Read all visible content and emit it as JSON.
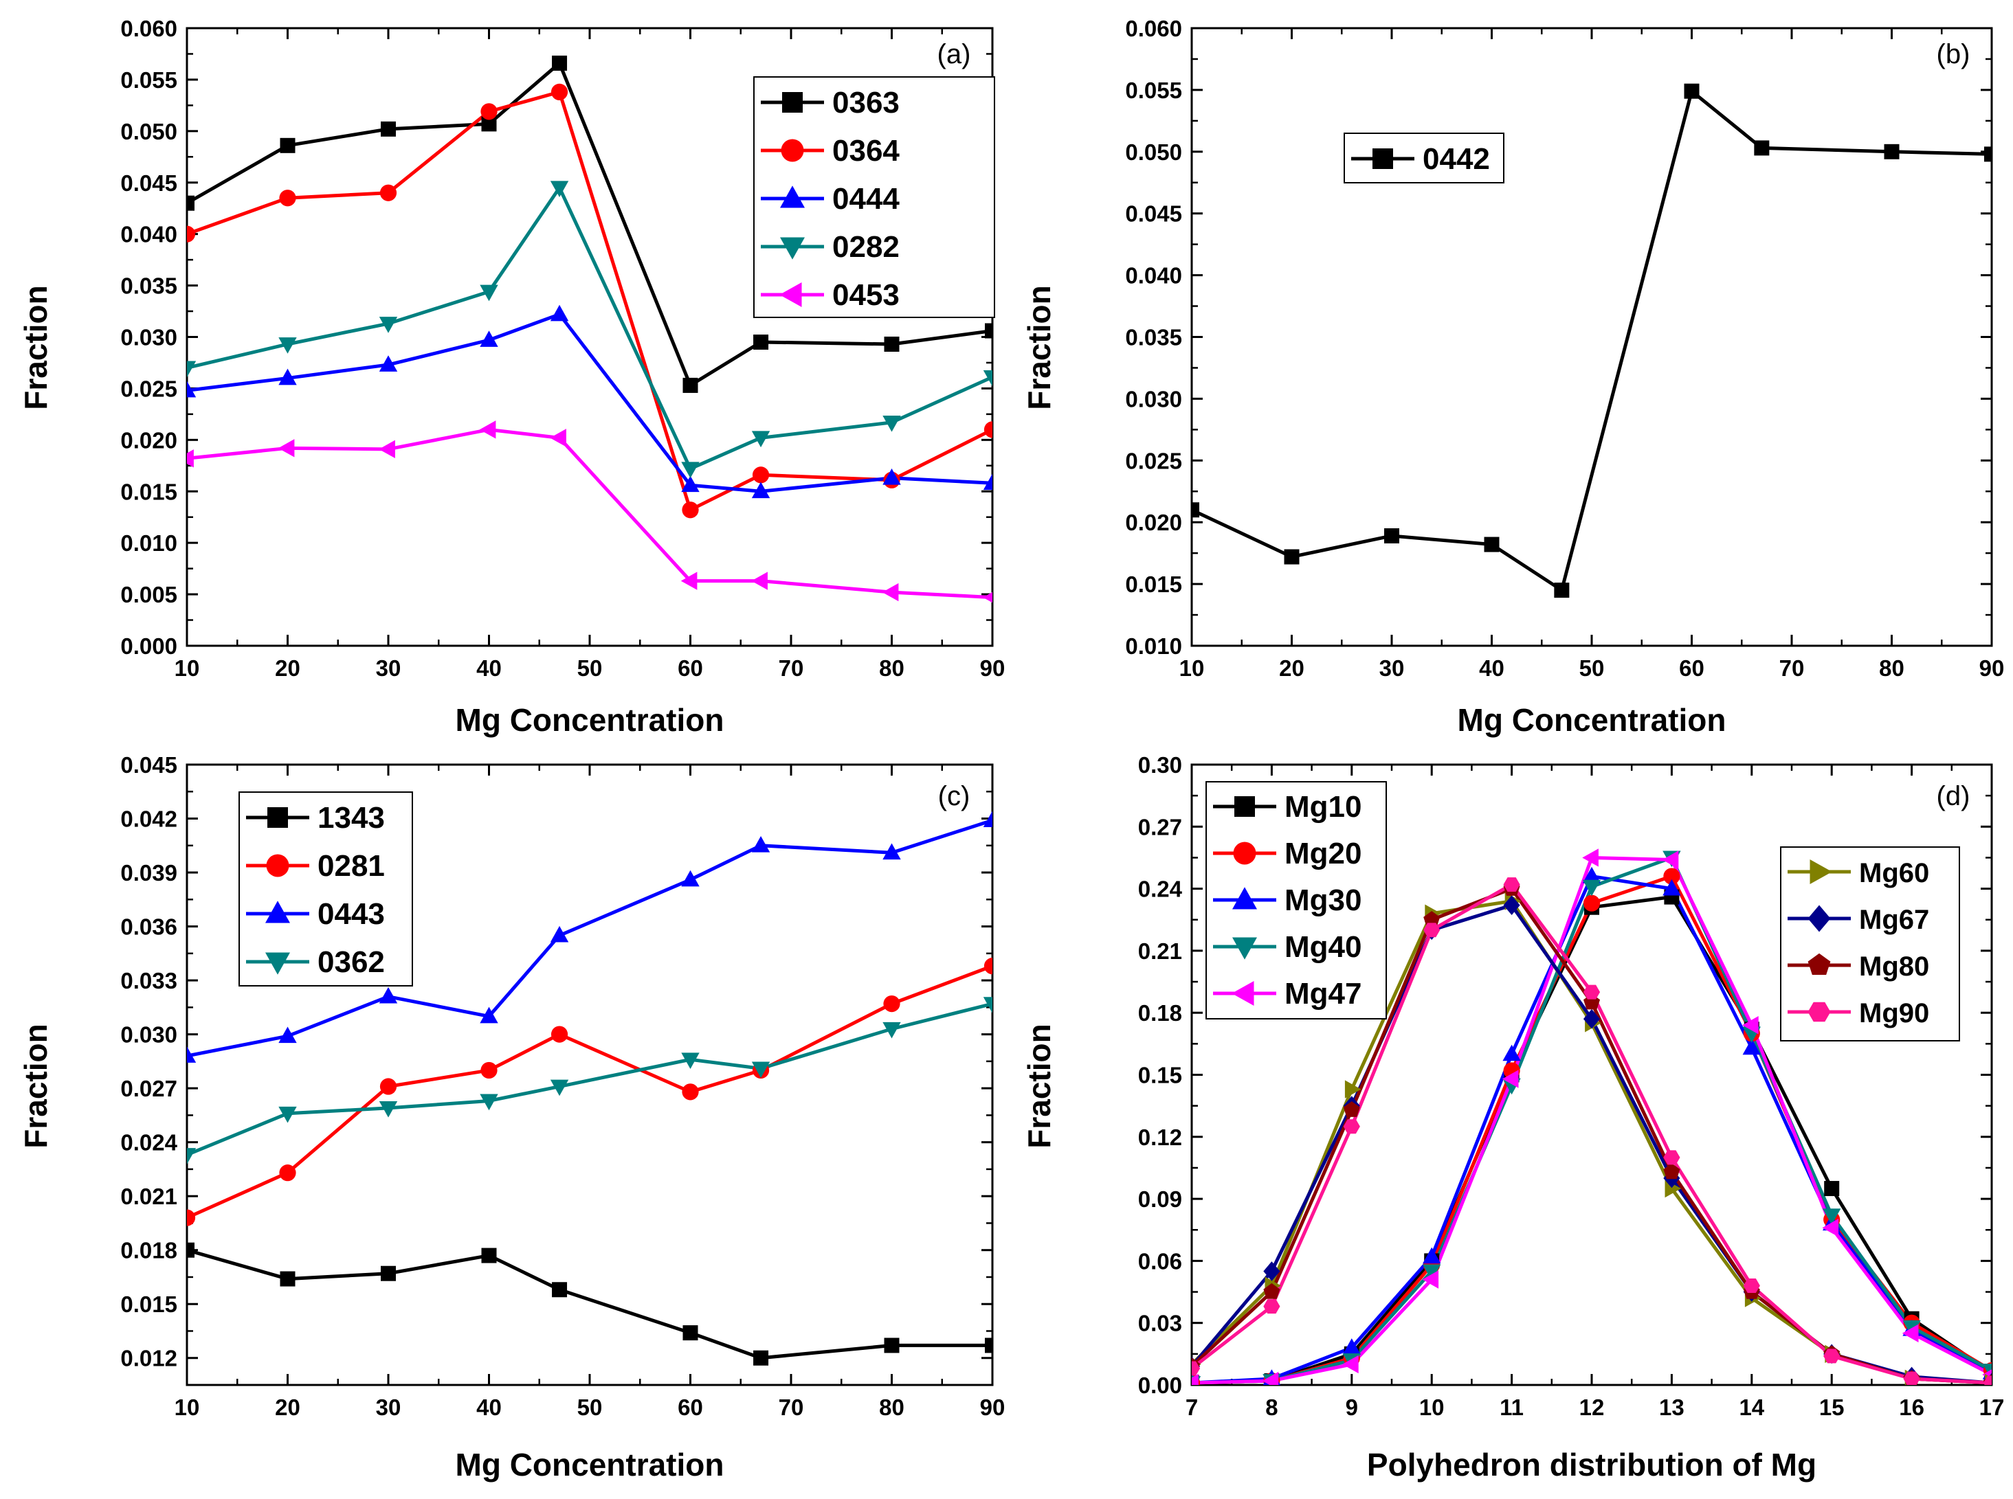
{
  "chart_data": [
    {
      "type": "line",
      "panel_label": "(a)",
      "xlabel": "Mg Concentration",
      "ylabel": "Fraction",
      "xlim": [
        10,
        90
      ],
      "ylim": [
        0.0,
        0.06
      ],
      "xticks": [
        10,
        20,
        30,
        40,
        50,
        60,
        70,
        80,
        90
      ],
      "yticks": [
        "0.000",
        "0.005",
        "0.010",
        "0.015",
        "0.020",
        "0.025",
        "0.030",
        "0.035",
        "0.040",
        "0.045",
        "0.050",
        "0.055",
        "0.060"
      ],
      "legend_position": "top-right",
      "x": [
        10,
        20,
        30,
        40,
        47,
        60,
        67,
        80,
        90
      ],
      "series": [
        {
          "name": "0363",
          "color": "#000000",
          "marker": "square",
          "values": [
            0.043,
            0.0486,
            0.0502,
            0.0507,
            0.0566,
            0.0253,
            0.0295,
            0.0293,
            0.0306
          ]
        },
        {
          "name": "0364",
          "color": "#ff0000",
          "marker": "circle",
          "values": [
            0.04,
            0.0435,
            0.044,
            0.0519,
            0.0538,
            0.0132,
            0.0166,
            0.0161,
            0.021
          ]
        },
        {
          "name": "0444",
          "color": "#0000ff",
          "marker": "triangle-up",
          "values": [
            0.0248,
            0.026,
            0.0273,
            0.0297,
            0.0322,
            0.0156,
            0.015,
            0.0163,
            0.0158
          ]
        },
        {
          "name": "0282",
          "color": "#008080",
          "marker": "triangle-down",
          "values": [
            0.027,
            0.0293,
            0.0313,
            0.0344,
            0.0445,
            0.0172,
            0.0202,
            0.0217,
            0.0261
          ]
        },
        {
          "name": "0453",
          "color": "#ff00ff",
          "marker": "triangle-left",
          "values": [
            0.0182,
            0.0192,
            0.0191,
            0.021,
            0.0202,
            0.0063,
            0.0063,
            0.0052,
            0.0047
          ]
        }
      ]
    },
    {
      "type": "line",
      "panel_label": "(b)",
      "xlabel": "Mg Concentration",
      "ylabel": "Fraction",
      "xlim": [
        10,
        90
      ],
      "ylim": [
        0.01,
        0.06
      ],
      "xticks": [
        10,
        20,
        30,
        40,
        50,
        60,
        70,
        80,
        90
      ],
      "yticks": [
        "0.010",
        "0.015",
        "0.020",
        "0.025",
        "0.030",
        "0.035",
        "0.040",
        "0.045",
        "0.050",
        "0.055",
        "0.060"
      ],
      "legend_position": "upper-left",
      "x": [
        10,
        20,
        30,
        40,
        47,
        60,
        67,
        80,
        90
      ],
      "series": [
        {
          "name": "0442",
          "color": "#000000",
          "marker": "square",
          "values": [
            0.021,
            0.0172,
            0.0189,
            0.0182,
            0.0145,
            0.0549,
            0.0503,
            0.05,
            0.0498
          ]
        }
      ]
    },
    {
      "type": "line",
      "panel_label": "(c)",
      "xlabel": "Mg Concentration",
      "ylabel": "Fraction",
      "xlim": [
        10,
        90
      ],
      "ylim": [
        0.0105,
        0.045
      ],
      "xticks": [
        10,
        20,
        30,
        40,
        50,
        60,
        70,
        80,
        90
      ],
      "yticks": [
        "0.012",
        "0.015",
        "0.018",
        "0.021",
        "0.024",
        "0.027",
        "0.030",
        "0.033",
        "0.036",
        "0.039",
        "0.042",
        "0.045"
      ],
      "legend_position": "top-left",
      "x": [
        10,
        20,
        30,
        40,
        47,
        60,
        67,
        80,
        90
      ],
      "series": [
        {
          "name": "1343",
          "color": "#000000",
          "marker": "square",
          "values": [
            0.018,
            0.0164,
            0.0167,
            0.0177,
            0.0158,
            0.0134,
            0.012,
            0.0127,
            0.0127
          ]
        },
        {
          "name": "0281",
          "color": "#ff0000",
          "marker": "circle",
          "values": [
            0.0198,
            0.0223,
            0.0271,
            0.028,
            0.03,
            0.0268,
            0.028,
            0.0317,
            0.0338
          ]
        },
        {
          "name": "0443",
          "color": "#0000ff",
          "marker": "triangle-up",
          "values": [
            0.0288,
            0.0299,
            0.0321,
            0.031,
            0.0355,
            0.0386,
            0.0405,
            0.0401,
            0.0419
          ]
        },
        {
          "name": "0362",
          "color": "#008080",
          "marker": "triangle-down",
          "values": [
            0.0233,
            0.0256,
            0.0259,
            0.0263,
            0.0271,
            0.0286,
            0.0281,
            0.0303,
            0.0317
          ]
        }
      ]
    },
    {
      "type": "line",
      "panel_label": "(d)",
      "xlabel": "Polyhedron distribution of Mg",
      "ylabel": "Fraction",
      "xlim": [
        7,
        17
      ],
      "ylim": [
        0.0,
        0.3
      ],
      "xticks": [
        7,
        8,
        9,
        10,
        11,
        12,
        13,
        14,
        15,
        16,
        17
      ],
      "yticks": [
        "0.00",
        "0.03",
        "0.06",
        "0.09",
        "0.12",
        "0.15",
        "0.18",
        "0.21",
        "0.24",
        "0.27",
        "0.30"
      ],
      "legend_position": "top-left and right",
      "x": [
        7,
        8,
        9,
        10,
        11,
        12,
        13,
        14,
        15,
        16,
        17
      ],
      "series": [
        {
          "name": "Mg10",
          "color": "#000000",
          "marker": "square",
          "group": "left",
          "values": [
            0.001,
            0.002,
            0.015,
            0.06,
            0.15,
            0.231,
            0.236,
            0.172,
            0.095,
            0.032,
            0.006
          ]
        },
        {
          "name": "Mg20",
          "color": "#ff0000",
          "marker": "circle",
          "group": "left",
          "values": [
            0.001,
            0.002,
            0.013,
            0.058,
            0.152,
            0.233,
            0.246,
            0.17,
            0.08,
            0.03,
            0.007
          ]
        },
        {
          "name": "Mg30",
          "color": "#0000ff",
          "marker": "triangle-up",
          "group": "left",
          "values": [
            0.001,
            0.003,
            0.018,
            0.062,
            0.16,
            0.246,
            0.24,
            0.163,
            0.078,
            0.027,
            0.006
          ]
        },
        {
          "name": "Mg40",
          "color": "#008080",
          "marker": "triangle-down",
          "group": "left",
          "values": [
            0.001,
            0.002,
            0.012,
            0.055,
            0.145,
            0.241,
            0.255,
            0.17,
            0.082,
            0.028,
            0.007
          ]
        },
        {
          "name": "Mg47",
          "color": "#ff00ff",
          "marker": "triangle-left",
          "group": "left",
          "values": [
            0.001,
            0.002,
            0.01,
            0.051,
            0.148,
            0.255,
            0.254,
            0.174,
            0.076,
            0.025,
            0.005
          ]
        },
        {
          "name": "Mg60",
          "color": "#808000",
          "marker": "triangle-right",
          "group": "right",
          "values": [
            0.01,
            0.048,
            0.143,
            0.228,
            0.234,
            0.175,
            0.095,
            0.042,
            0.015,
            0.003,
            0.001
          ]
        },
        {
          "name": "Mg67",
          "color": "#00008b",
          "marker": "diamond",
          "group": "right",
          "values": [
            0.009,
            0.055,
            0.135,
            0.22,
            0.232,
            0.177,
            0.1,
            0.045,
            0.015,
            0.004,
            0.001
          ]
        },
        {
          "name": "Mg80",
          "color": "#8b0000",
          "marker": "pentagon",
          "group": "right",
          "values": [
            0.009,
            0.045,
            0.133,
            0.225,
            0.24,
            0.185,
            0.103,
            0.045,
            0.015,
            0.003,
            0.001
          ]
        },
        {
          "name": "Mg90",
          "color": "#ff1493",
          "marker": "hexagon",
          "group": "right",
          "values": [
            0.008,
            0.038,
            0.125,
            0.22,
            0.242,
            0.19,
            0.11,
            0.048,
            0.014,
            0.003,
            0.001
          ]
        }
      ]
    }
  ]
}
